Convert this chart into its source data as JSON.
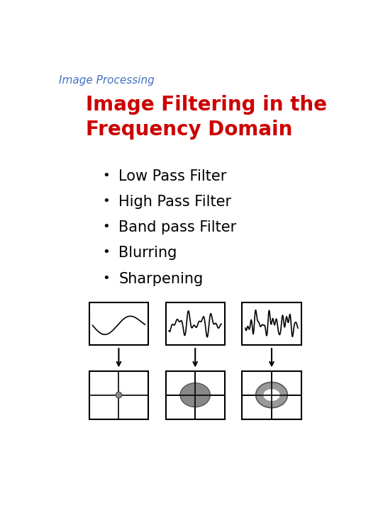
{
  "title_top": "Image Processing",
  "title_top_color": "#4472C4",
  "title_main": "Image Filtering in the\nFrequency Domain",
  "title_main_color": "#CC0000",
  "bullets": [
    "Low Pass Filter",
    "High Pass Filter",
    "Band pass Filter",
    "Blurring",
    "Sharpening"
  ],
  "bullet_color": "#000000",
  "bg_color": "#FFFFFF",
  "box_edge_color": "#000000",
  "arrow_color": "#000000",
  "ellipse_color_fill": "#888888",
  "ellipse_color_ring": "#999999",
  "ellipse_edge_color": "#555555"
}
